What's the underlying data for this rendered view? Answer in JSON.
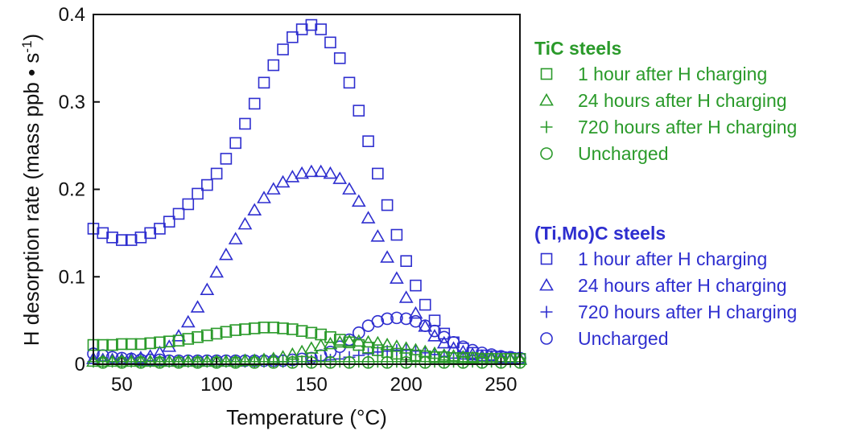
{
  "colors": {
    "tic": "#2a9a2a",
    "timoc": "#2e2ecf",
    "axis": "#111111"
  },
  "chart_data": {
    "type": "scatter",
    "xlabel": "Temperature (°C)",
    "ylabel": "H desorption rate (mass ppb • s",
    "ylabel_sup": "-1",
    "ylabel_close": ")",
    "xlim": [
      35,
      260
    ],
    "ylim": [
      0,
      0.4
    ],
    "xticks": [
      50,
      100,
      150,
      200,
      250
    ],
    "yticks": [
      0,
      0.1,
      0.2,
      0.3,
      0.4
    ],
    "ytick_labels": [
      "0",
      "0.1",
      "0.2",
      "0.3",
      "0.4"
    ],
    "grid": false,
    "legend_groups": [
      {
        "title": "TiC steels",
        "color_key": "tic",
        "entries": [
          {
            "marker": "square",
            "label": "1 hour after H charging"
          },
          {
            "marker": "triangle",
            "label": "24 hours after H charging"
          },
          {
            "marker": "plus",
            "label": "720 hours after H charging"
          },
          {
            "marker": "circle",
            "label": "Uncharged"
          }
        ]
      },
      {
        "title": "(Ti,Mo)C steels",
        "color_key": "timoc",
        "entries": [
          {
            "marker": "square",
            "label": "1 hour after H charging"
          },
          {
            "marker": "triangle",
            "label": "24 hours after H charging"
          },
          {
            "marker": "plus",
            "label": "720 hours after H charging"
          },
          {
            "marker": "circle",
            "label": "Uncharged"
          }
        ]
      }
    ],
    "series": [
      {
        "group": "(Ti,Mo)C steels",
        "marker": "square",
        "color_key": "timoc",
        "x": [
          35,
          40,
          45,
          50,
          55,
          60,
          65,
          70,
          75,
          80,
          85,
          90,
          95,
          100,
          105,
          110,
          115,
          120,
          125,
          130,
          135,
          140,
          145,
          150,
          155,
          160,
          165,
          170,
          175,
          180,
          185,
          190,
          195,
          200,
          205,
          210,
          215,
          220,
          225,
          230,
          235,
          240,
          245,
          250,
          255,
          260
        ],
        "y": [
          0.155,
          0.15,
          0.145,
          0.142,
          0.142,
          0.145,
          0.15,
          0.155,
          0.163,
          0.172,
          0.183,
          0.195,
          0.205,
          0.218,
          0.235,
          0.253,
          0.275,
          0.298,
          0.322,
          0.342,
          0.36,
          0.374,
          0.383,
          0.388,
          0.383,
          0.368,
          0.35,
          0.322,
          0.29,
          0.255,
          0.218,
          0.182,
          0.148,
          0.118,
          0.09,
          0.068,
          0.05,
          0.035,
          0.025,
          0.018,
          0.013,
          0.01,
          0.009,
          0.008,
          0.007,
          0.006
        ]
      },
      {
        "group": "(Ti,Mo)C steels",
        "marker": "triangle",
        "color_key": "timoc",
        "x": [
          35,
          40,
          45,
          50,
          55,
          60,
          65,
          70,
          75,
          80,
          85,
          90,
          95,
          100,
          105,
          110,
          115,
          120,
          125,
          130,
          135,
          140,
          145,
          150,
          155,
          160,
          165,
          170,
          175,
          180,
          185,
          190,
          195,
          200,
          205,
          210,
          215,
          220,
          225,
          230,
          235,
          240,
          245,
          250,
          255,
          260
        ],
        "y": [
          0.006,
          0.005,
          0.005,
          0.005,
          0.006,
          0.007,
          0.009,
          0.013,
          0.02,
          0.032,
          0.048,
          0.065,
          0.085,
          0.105,
          0.125,
          0.143,
          0.16,
          0.176,
          0.19,
          0.2,
          0.208,
          0.214,
          0.218,
          0.22,
          0.22,
          0.218,
          0.212,
          0.2,
          0.186,
          0.167,
          0.146,
          0.122,
          0.098,
          0.076,
          0.058,
          0.043,
          0.032,
          0.024,
          0.018,
          0.014,
          0.011,
          0.009,
          0.008,
          0.007,
          0.006,
          0.006
        ]
      },
      {
        "group": "(Ti,Mo)C steels",
        "marker": "plus",
        "color_key": "timoc",
        "x": [
          135,
          140,
          145,
          150,
          155,
          160,
          165,
          170,
          175,
          180,
          185,
          190,
          195,
          200,
          205,
          210,
          215,
          220,
          225,
          230,
          235,
          240,
          245,
          250,
          255,
          260
        ],
        "y": [
          0.003,
          0.003,
          0.003,
          0.004,
          0.004,
          0.005,
          0.006,
          0.008,
          0.01,
          0.012,
          0.014,
          0.015,
          0.016,
          0.016,
          0.015,
          0.013,
          0.011,
          0.009,
          0.007,
          0.006,
          0.005,
          0.004,
          0.004,
          0.003,
          0.003,
          0.003
        ]
      },
      {
        "group": "(Ti,Mo)C steels",
        "marker": "circle",
        "color_key": "timoc",
        "x": [
          35,
          40,
          45,
          50,
          55,
          60,
          65,
          70,
          75,
          80,
          85,
          90,
          95,
          100,
          105,
          110,
          115,
          120,
          125,
          130,
          135,
          140,
          145,
          150,
          155,
          160,
          165,
          170,
          175,
          180,
          185,
          190,
          195,
          200,
          205,
          210,
          215,
          220,
          225,
          230,
          235,
          240,
          245,
          250,
          255,
          260
        ],
        "y": [
          0.012,
          0.01,
          0.008,
          0.007,
          0.006,
          0.005,
          0.005,
          0.005,
          0.004,
          0.004,
          0.004,
          0.004,
          0.004,
          0.004,
          0.004,
          0.004,
          0.004,
          0.004,
          0.004,
          0.004,
          0.004,
          0.005,
          0.006,
          0.007,
          0.01,
          0.014,
          0.02,
          0.028,
          0.036,
          0.044,
          0.049,
          0.052,
          0.053,
          0.052,
          0.049,
          0.044,
          0.038,
          0.031,
          0.025,
          0.02,
          0.016,
          0.013,
          0.011,
          0.009,
          0.008,
          0.007
        ]
      },
      {
        "group": "TiC steels",
        "marker": "square",
        "color_key": "tic",
        "x": [
          35,
          40,
          45,
          50,
          55,
          60,
          65,
          70,
          75,
          80,
          85,
          90,
          95,
          100,
          105,
          110,
          115,
          120,
          125,
          130,
          135,
          140,
          145,
          150,
          155,
          160,
          165,
          170,
          175,
          180,
          185,
          190,
          195,
          200,
          205,
          210,
          215,
          220,
          225,
          230,
          235,
          240,
          245,
          250,
          255,
          260
        ],
        "y": [
          0.022,
          0.022,
          0.022,
          0.023,
          0.023,
          0.023,
          0.024,
          0.025,
          0.026,
          0.027,
          0.029,
          0.031,
          0.033,
          0.035,
          0.037,
          0.039,
          0.04,
          0.041,
          0.042,
          0.042,
          0.041,
          0.04,
          0.038,
          0.036,
          0.034,
          0.031,
          0.028,
          0.025,
          0.022,
          0.019,
          0.016,
          0.014,
          0.012,
          0.011,
          0.01,
          0.009,
          0.008,
          0.008,
          0.007,
          0.007,
          0.007,
          0.006,
          0.006,
          0.006,
          0.006,
          0.006
        ]
      },
      {
        "group": "TiC steels",
        "marker": "triangle",
        "color_key": "tic",
        "x": [
          35,
          40,
          45,
          50,
          55,
          60,
          65,
          70,
          75,
          80,
          85,
          90,
          95,
          100,
          105,
          110,
          115,
          120,
          125,
          130,
          135,
          140,
          145,
          150,
          155,
          160,
          165,
          170,
          175,
          180,
          185,
          190,
          195,
          200,
          205,
          210,
          215,
          220,
          225,
          230,
          235,
          240,
          245,
          250,
          255,
          260
        ],
        "y": [
          0.003,
          0.003,
          0.003,
          0.003,
          0.003,
          0.003,
          0.003,
          0.003,
          0.003,
          0.003,
          0.003,
          0.003,
          0.003,
          0.003,
          0.003,
          0.003,
          0.004,
          0.004,
          0.005,
          0.006,
          0.008,
          0.011,
          0.014,
          0.018,
          0.021,
          0.023,
          0.025,
          0.026,
          0.026,
          0.025,
          0.024,
          0.022,
          0.02,
          0.018,
          0.016,
          0.014,
          0.012,
          0.01,
          0.009,
          0.008,
          0.007,
          0.006,
          0.006,
          0.005,
          0.005,
          0.005
        ]
      },
      {
        "group": "TiC steels",
        "marker": "plus",
        "color_key": "tic",
        "x": [
          35,
          40,
          45,
          50,
          55,
          60,
          65,
          70,
          75,
          80,
          85,
          90,
          95,
          100,
          105,
          110,
          115,
          120,
          125,
          130,
          135,
          140,
          145,
          150,
          155,
          160,
          165,
          170,
          175,
          180,
          185,
          190,
          195,
          200,
          205,
          210,
          215,
          220,
          225,
          230,
          235,
          240,
          245,
          250,
          255,
          260
        ],
        "y": [
          0.003,
          0.003,
          0.003,
          0.003,
          0.003,
          0.003,
          0.003,
          0.003,
          0.003,
          0.003,
          0.003,
          0.003,
          0.003,
          0.003,
          0.003,
          0.003,
          0.003,
          0.003,
          0.003,
          0.003,
          0.003,
          0.003,
          0.003,
          0.003,
          0.003,
          0.003,
          0.003,
          0.003,
          0.003,
          0.003,
          0.003,
          0.003,
          0.003,
          0.003,
          0.003,
          0.003,
          0.003,
          0.003,
          0.003,
          0.003,
          0.003,
          0.003,
          0.003,
          0.003,
          0.003,
          0.003
        ]
      },
      {
        "group": "TiC steels",
        "marker": "circle",
        "color_key": "tic",
        "x": [
          40,
          50,
          60,
          70,
          80,
          90,
          100,
          110,
          120,
          130,
          140,
          150,
          160,
          170,
          180,
          190,
          200,
          210,
          220,
          230,
          240,
          250,
          260
        ],
        "y": [
          0.002,
          0.002,
          0.002,
          0.002,
          0.002,
          0.002,
          0.002,
          0.002,
          0.002,
          0.002,
          0.002,
          0.002,
          0.002,
          0.002,
          0.002,
          0.002,
          0.002,
          0.002,
          0.002,
          0.002,
          0.002,
          0.002,
          0.002
        ]
      }
    ]
  }
}
